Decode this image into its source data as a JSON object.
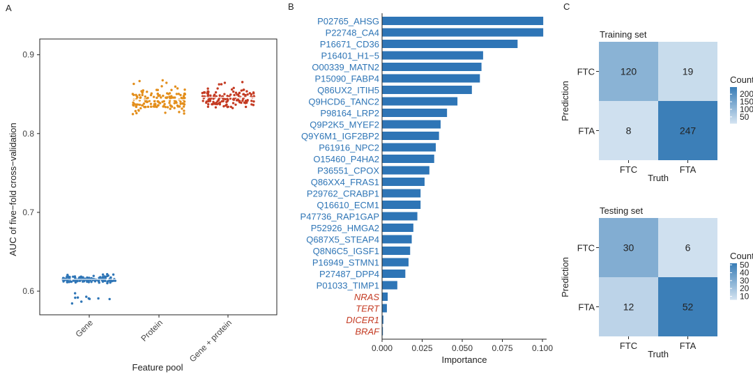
{
  "colors": {
    "gene": "#2e75b6",
    "protein": "#e38e1b",
    "both": "#c43b23",
    "bar": "#2e75b6",
    "protein_label": "#2e75b6",
    "gene_label": "#c43b23",
    "heat_low": "#cfe0ef",
    "heat_high": "#3c7fb8"
  },
  "chart_data": [
    {
      "panel": "A",
      "type": "scatter",
      "ylabel": "AUC of five−fold cross−validation",
      "xlabel": "Feature pool",
      "categories": [
        "Gene",
        "Protein",
        "Gene + protein"
      ],
      "ylim": [
        0.57,
        0.92
      ],
      "yticks": [
        "0.6",
        "0.7",
        "0.8",
        "0.9"
      ],
      "ytick_values": [
        0.6,
        0.7,
        0.8,
        0.9
      ],
      "series": [
        {
          "category": "Gene",
          "mean": 0.615,
          "min": 0.582,
          "max": 0.622
        },
        {
          "category": "Protein",
          "mean": 0.843,
          "min": 0.833,
          "max": 0.87
        },
        {
          "category": "Gene + protein",
          "mean": 0.846,
          "min": 0.833,
          "max": 0.866
        }
      ]
    },
    {
      "panel": "B",
      "type": "bar",
      "orientation": "horizontal",
      "xlabel": "Importance",
      "xlim": [
        0,
        0.102
      ],
      "xticks": [
        "0.000",
        "0.025",
        "0.050",
        "0.075",
        "0.100"
      ],
      "xtick_values": [
        0,
        0.025,
        0.05,
        0.075,
        0.1
      ],
      "bars": [
        {
          "label": "P02765_AHSG",
          "value": 0.1005,
          "kind": "protein"
        },
        {
          "label": "P22748_CA4",
          "value": 0.1005,
          "kind": "protein"
        },
        {
          "label": "P16671_CD36",
          "value": 0.0845,
          "kind": "protein"
        },
        {
          "label": "P16401_H1−5",
          "value": 0.063,
          "kind": "protein"
        },
        {
          "label": "O00339_MATN2",
          "value": 0.062,
          "kind": "protein"
        },
        {
          "label": "P15090_FABP4",
          "value": 0.061,
          "kind": "protein"
        },
        {
          "label": "Q86UX2_ITIH5",
          "value": 0.056,
          "kind": "protein"
        },
        {
          "label": "Q9HCD6_TANC2",
          "value": 0.047,
          "kind": "protein"
        },
        {
          "label": "P98164_LRP2",
          "value": 0.0405,
          "kind": "protein"
        },
        {
          "label": "Q9P2K5_MYEF2",
          "value": 0.0365,
          "kind": "protein"
        },
        {
          "label": "Q9Y6M1_IGF2BP2",
          "value": 0.0355,
          "kind": "protein"
        },
        {
          "label": "P61916_NPC2",
          "value": 0.0335,
          "kind": "protein"
        },
        {
          "label": "O15460_P4HA2",
          "value": 0.0325,
          "kind": "protein"
        },
        {
          "label": "P36551_CPOX",
          "value": 0.0295,
          "kind": "protein"
        },
        {
          "label": "Q86XX4_FRAS1",
          "value": 0.0265,
          "kind": "protein"
        },
        {
          "label": "P29762_CRABP1",
          "value": 0.024,
          "kind": "protein"
        },
        {
          "label": "Q16610_ECM1",
          "value": 0.024,
          "kind": "protein"
        },
        {
          "label": "P47736_RAP1GAP",
          "value": 0.022,
          "kind": "protein"
        },
        {
          "label": "P52926_HMGA2",
          "value": 0.0195,
          "kind": "protein"
        },
        {
          "label": "Q687X5_STEAP4",
          "value": 0.0185,
          "kind": "protein"
        },
        {
          "label": "Q8N6C5_IGSF1",
          "value": 0.0175,
          "kind": "protein"
        },
        {
          "label": "P16949_STMN1",
          "value": 0.0165,
          "kind": "protein"
        },
        {
          "label": "P27487_DPP4",
          "value": 0.0145,
          "kind": "protein"
        },
        {
          "label": "P01033_TIMP1",
          "value": 0.0095,
          "kind": "protein"
        },
        {
          "label": "NRAS",
          "value": 0.0035,
          "kind": "gene"
        },
        {
          "label": "TERT",
          "value": 0.003,
          "kind": "gene"
        },
        {
          "label": "DICER1",
          "value": 0.0008,
          "kind": "gene"
        },
        {
          "label": "BRAF",
          "value": 0.0005,
          "kind": "gene"
        }
      ]
    },
    {
      "panel": "C",
      "type": "heatmap",
      "title": "Training set",
      "xlabel": "Truth",
      "ylabel": "Prediction",
      "x_categories": [
        "FTC",
        "FTA"
      ],
      "y_categories": [
        "FTC",
        "FTA"
      ],
      "cells": [
        [
          120,
          19
        ],
        [
          8,
          247
        ]
      ],
      "legend_title": "Count",
      "legend_ticks": [
        "200",
        "150",
        "100",
        "50"
      ],
      "legend_tick_values": [
        200,
        150,
        100,
        50
      ],
      "legend_range": [
        8,
        247
      ]
    },
    {
      "panel": "C",
      "type": "heatmap",
      "title": "Testing set",
      "xlabel": "Truth",
      "ylabel": "Prediction",
      "x_categories": [
        "FTC",
        "FTA"
      ],
      "y_categories": [
        "FTC",
        "FTA"
      ],
      "cells": [
        [
          30,
          6
        ],
        [
          12,
          52
        ]
      ],
      "legend_title": "Count",
      "legend_ticks": [
        "50",
        "40",
        "30",
        "20",
        "10"
      ],
      "legend_tick_values": [
        50,
        40,
        30,
        20,
        10
      ],
      "legend_range": [
        6,
        52
      ]
    }
  ],
  "panel_labels": {
    "a": "A",
    "b": "B",
    "c": "C"
  }
}
